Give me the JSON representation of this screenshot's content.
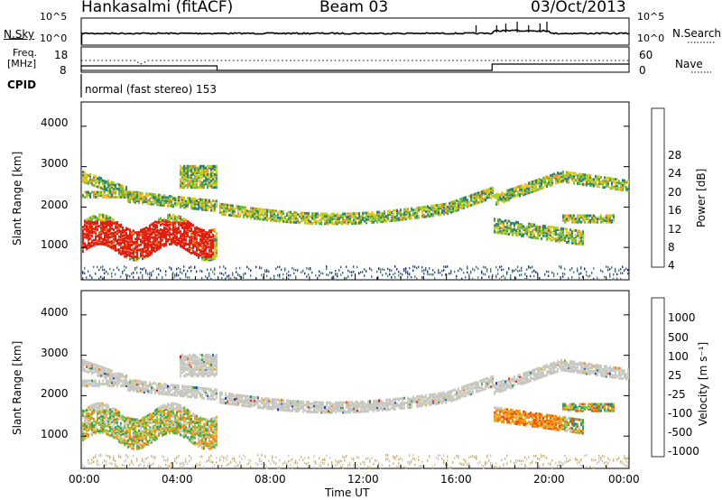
{
  "header": {
    "station": "Hankasalmi (fitACF)",
    "beam": "Beam 03",
    "date": "03/Oct/2013"
  },
  "noise_panel": {
    "left_label": "N.Sky",
    "right_label": "N.Search",
    "left_ticks": [
      "10^5",
      "10^0"
    ],
    "right_ticks": [
      "10^5",
      "10^0"
    ]
  },
  "freq_panel": {
    "left_label_1": "Freq.",
    "left_label_2": "[MHz]",
    "left_ticks": [
      "18",
      "8"
    ],
    "right_label": "Nave",
    "right_ticks": [
      "60",
      "0"
    ]
  },
  "cpid": {
    "label": "CPID",
    "program": "normal (fast stereo) 153"
  },
  "chart_data": [
    {
      "type": "heatmap",
      "name": "power",
      "ylabel": "Slant Range [km]",
      "ylim": [
        200,
        4600
      ],
      "yticks": [
        "4000",
        "3000",
        "2000",
        "1000"
      ],
      "colorbar": {
        "label": "Power [dB]",
        "ticks": [
          "28",
          "24",
          "20",
          "16",
          "12",
          "8",
          "4"
        ],
        "colors": [
          "#1020e0",
          "#1060a0",
          "#2a7a8a",
          "#3a8a6a",
          "#6abb3a",
          "#b0d020",
          "#f0c020",
          "#f09020",
          "#f06010",
          "#e02010"
        ]
      }
    },
    {
      "type": "heatmap",
      "name": "velocity",
      "ylabel": "Slant Range [km]",
      "ylim": [
        200,
        4600
      ],
      "yticks": [
        "4000",
        "3000",
        "2000",
        "1000"
      ],
      "colorbar": {
        "label": "Velocity [m s⁻¹]",
        "ticks": [
          "1000",
          "500",
          "100",
          "25",
          "-25",
          "-100",
          "-500",
          "-1000"
        ],
        "colors": [
          "#1a40c0",
          "#2a6aa8",
          "#2a8a7a",
          "#40a050",
          "#7cc040",
          "#c8c8c0",
          "#e8b020",
          "#f08a10",
          "#f05010",
          "#e01010"
        ]
      }
    }
  ],
  "xaxis": {
    "label": "Time UT",
    "ticks": [
      "00:00",
      "04:00",
      "08:00",
      "12:00",
      "16:00",
      "20:00",
      "00:00"
    ]
  }
}
